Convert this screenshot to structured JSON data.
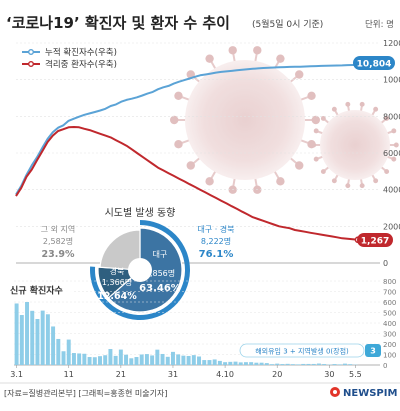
{
  "header": {
    "title": "‘코로나19’ 확진자 및 환자 수 추이",
    "date_note": "(5월5일 0시 기준)",
    "unit": "단위: 명"
  },
  "legend": {
    "cumulative": "누적 확진자수(우축)",
    "isolated": "격리중 환자수(우축)"
  },
  "colors": {
    "cumulative_line": "#5ba3d6",
    "isolated_line": "#c0282d",
    "daily_bar": "#8ecde8",
    "donut_region": "#2f5f7f",
    "donut_daegu": "#3c74a3",
    "donut_other": "#c9c9c9",
    "accent_text": "#2c86c8"
  },
  "chart_data": [
    {
      "type": "line",
      "title": "‘코로나19’ 확진자 및 환자 수 추이",
      "ylabel": "단위: 명",
      "ylim": [
        0,
        12000
      ],
      "yticks": [
        "0",
        "2000",
        "4000",
        "6000",
        "8000",
        "10000",
        "12000"
      ],
      "x": [
        "3.1",
        "3.2",
        "3.3",
        "3.4",
        "3.5",
        "3.6",
        "3.7",
        "3.8",
        "3.9",
        "3.10",
        "3.11",
        "3.12",
        "3.13",
        "3.14",
        "3.15",
        "3.16",
        "3.17",
        "3.18",
        "3.19",
        "3.20",
        "3.21",
        "3.22",
        "3.23",
        "3.24",
        "3.25",
        "3.26",
        "3.27",
        "3.28",
        "3.29",
        "3.30",
        "3.31",
        "4.1",
        "4.2",
        "4.3",
        "4.4",
        "4.5",
        "4.6",
        "4.7",
        "4.8",
        "4.9",
        "4.10",
        "4.11",
        "4.12",
        "4.13",
        "4.14",
        "4.15",
        "4.16",
        "4.17",
        "4.18",
        "4.19",
        "4.20",
        "4.21",
        "4.22",
        "4.23",
        "4.24",
        "4.25",
        "4.26",
        "4.27",
        "4.28",
        "4.29",
        "4.30",
        "5.1",
        "5.2",
        "5.3",
        "5.4",
        "5.5"
      ],
      "series": [
        {
          "name": "누적 확진자수(우축)",
          "values": [
            3736,
            4212,
            4812,
            5328,
            5766,
            6284,
            6767,
            7134,
            7382,
            7513,
            7755,
            7869,
            7979,
            8086,
            8162,
            8236,
            8320,
            8413,
            8565,
            8652,
            8799,
            8897,
            8961,
            9037,
            9137,
            9241,
            9332,
            9478,
            9583,
            9661,
            9786,
            9887,
            9976,
            10062,
            10156,
            10237,
            10284,
            10331,
            10384,
            10423,
            10450,
            10480,
            10512,
            10537,
            10564,
            10591,
            10613,
            10635,
            10653,
            10661,
            10674,
            10683,
            10694,
            10702,
            10708,
            10718,
            10728,
            10738,
            10752,
            10761,
            10765,
            10774,
            10780,
            10793,
            10801,
            10804
          ]
        },
        {
          "name": "격리중 환자수(우축)",
          "values": [
            3650,
            4100,
            4700,
            5100,
            5600,
            6100,
            6600,
            6950,
            7200,
            7300,
            7400,
            7420,
            7400,
            7320,
            7250,
            7150,
            7050,
            6950,
            6850,
            6700,
            6550,
            6400,
            6200,
            6000,
            5800,
            5600,
            5400,
            5200,
            5050,
            4900,
            4750,
            4600,
            4450,
            4300,
            4150,
            4000,
            3850,
            3700,
            3550,
            3400,
            3250,
            3100,
            2950,
            2800,
            2650,
            2500,
            2400,
            2300,
            2200,
            2100,
            2000,
            1950,
            1900,
            1800,
            1750,
            1700,
            1650,
            1600,
            1550,
            1500,
            1450,
            1400,
            1350,
            1320,
            1290,
            1267
          ]
        }
      ],
      "labels": [
        {
          "series": "누적 확진자수(우축)",
          "text": "10,804"
        },
        {
          "series": "격리중 환자수(우축)",
          "text": "1,267"
        }
      ]
    },
    {
      "type": "bar",
      "title": "신규 확진자수",
      "ylim": [
        0,
        800
      ],
      "yticks": [
        "0",
        "100",
        "200",
        "300",
        "400",
        "500",
        "600",
        "700",
        "800"
      ],
      "categories": [
        "3.1",
        "3.2",
        "3.3",
        "3.4",
        "3.5",
        "3.6",
        "3.7",
        "3.8",
        "3.9",
        "3.10",
        "3.11",
        "3.12",
        "3.13",
        "3.14",
        "3.15",
        "3.16",
        "3.17",
        "3.18",
        "3.19",
        "3.20",
        "3.21",
        "3.22",
        "3.23",
        "3.24",
        "3.25",
        "3.26",
        "3.27",
        "3.28",
        "3.29",
        "3.30",
        "3.31",
        "4.1",
        "4.2",
        "4.3",
        "4.4",
        "4.5",
        "4.6",
        "4.7",
        "4.8",
        "4.9",
        "4.10",
        "4.11",
        "4.12",
        "4.13",
        "4.14",
        "4.15",
        "4.16",
        "4.17",
        "4.18",
        "4.19",
        "4.20",
        "4.21",
        "4.22",
        "4.23",
        "4.24",
        "4.25",
        "4.26",
        "4.27",
        "4.28",
        "4.29",
        "4.30",
        "5.1",
        "5.2",
        "5.3",
        "5.4",
        "5.5"
      ],
      "xticks": [
        "3.1",
        "11",
        "21",
        "31",
        "4.10",
        "20",
        "30",
        "5.5"
      ],
      "values": [
        586,
        476,
        600,
        516,
        438,
        518,
        483,
        367,
        248,
        131,
        242,
        114,
        110,
        107,
        76,
        74,
        84,
        93,
        152,
        87,
        147,
        98,
        64,
        76,
        100,
        104,
        91,
        146,
        105,
        78,
        125,
        101,
        89,
        86,
        94,
        81,
        47,
        47,
        53,
        39,
        27,
        30,
        32,
        25,
        27,
        27,
        22,
        22,
        18,
        8,
        13,
        9,
        11,
        8,
        6,
        10,
        10,
        10,
        14,
        9,
        4,
        9,
        6,
        13,
        8,
        3
      ],
      "annotation": {
        "text": "해외유입 3 + 지역발생 0(장점)",
        "value_label": "3"
      }
    },
    {
      "type": "pie",
      "title": "시도별 발생 동향",
      "slices": [
        {
          "label": "대구",
          "value_text": "6,856명",
          "pct_text": "63.46%",
          "value": 6856
        },
        {
          "label": "경북",
          "value_text": "1,366명",
          "pct_text": "12.64%",
          "value": 1366
        },
        {
          "label": "그 외 지역",
          "value_text": "2,582명",
          "pct_text": "23.9%",
          "value": 2582
        }
      ],
      "outer_label": {
        "name": "대구 · 경북",
        "value_text": "8,222명",
        "pct_text": "76.1%"
      }
    }
  ],
  "footer": {
    "source": "[자료=질병관리본부] [그래픽=홍종현 미술기자]",
    "brand": "NEWSPIM"
  }
}
